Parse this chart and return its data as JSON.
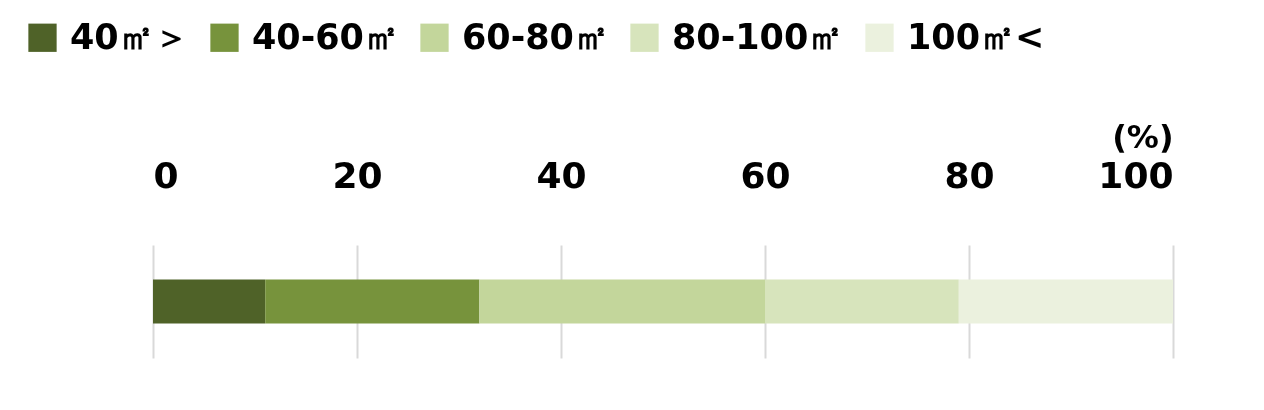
{
  "chart_data": {
    "type": "bar",
    "orientation": "horizontal",
    "stacked": true,
    "categories": [
      null
    ],
    "xlabel": "(%)",
    "xlim": [
      0,
      100
    ],
    "xticks": [
      0,
      20,
      40,
      60,
      80,
      100
    ],
    "grid": "x",
    "legend": "top",
    "series": [
      {
        "name": "40㎡＞",
        "color": "#4f6228",
        "values": [
          11
        ]
      },
      {
        "name": "40-60㎡",
        "color": "#77933c",
        "values": [
          21
        ]
      },
      {
        "name": "60-80㎡",
        "color": "#c3d69b",
        "values": [
          28
        ]
      },
      {
        "name": "80-100㎡",
        "color": "#d7e4bc",
        "values": [
          19
        ]
      },
      {
        "name": "100㎡<",
        "color": "#ebf1de",
        "values": [
          21
        ]
      }
    ]
  }
}
